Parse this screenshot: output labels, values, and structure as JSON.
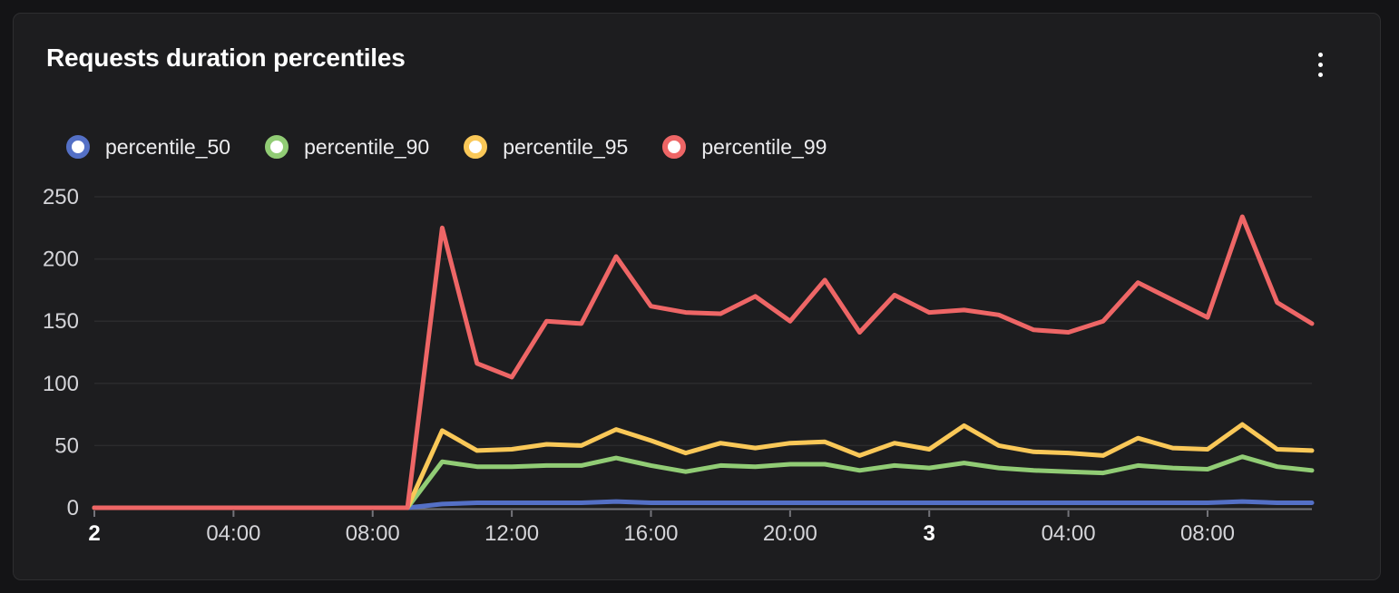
{
  "panel": {
    "title": "Requests duration percentiles",
    "background_color": "#1d1d1f",
    "page_background_color": "#141416",
    "menu_icon": "kebab-vertical-icon"
  },
  "legend": {
    "position": "top-left",
    "items": [
      {
        "label": "percentile_50",
        "color": "#5470c6"
      },
      {
        "label": "percentile_90",
        "color": "#91cc75"
      },
      {
        "label": "percentile_95",
        "color": "#fac858"
      },
      {
        "label": "percentile_99",
        "color": "#ee6666"
      }
    ]
  },
  "chart_data": {
    "type": "line",
    "title": "Requests duration percentiles",
    "xlabel": "",
    "ylabel": "",
    "x_unit": "hours, hourly samples from day 2 00:00 to day 3 11:00",
    "x_hours_range": [
      0,
      35
    ],
    "x_tick_labels": [
      {
        "hour": 0,
        "label": "2",
        "bold": true
      },
      {
        "hour": 4,
        "label": "04:00",
        "bold": false
      },
      {
        "hour": 8,
        "label": "08:00",
        "bold": false
      },
      {
        "hour": 12,
        "label": "12:00",
        "bold": false
      },
      {
        "hour": 16,
        "label": "16:00",
        "bold": false
      },
      {
        "hour": 20,
        "label": "20:00",
        "bold": false
      },
      {
        "hour": 24,
        "label": "3",
        "bold": true
      },
      {
        "hour": 28,
        "label": "04:00",
        "bold": false
      },
      {
        "hour": 32,
        "label": "08:00",
        "bold": false
      }
    ],
    "y_ticks": [
      0,
      50,
      100,
      150,
      200,
      250
    ],
    "ylim": [
      0,
      250
    ],
    "grid": {
      "horizontal": true,
      "vertical": false,
      "gridline_color": "#2b2b2d",
      "axis_color": "#74747a"
    },
    "legend_position": "top-left",
    "series": [
      {
        "name": "percentile_50",
        "color": "#5470c6",
        "values": [
          0,
          0,
          0,
          0,
          0,
          0,
          0,
          0,
          0,
          0,
          3,
          4,
          4,
          4,
          4,
          5,
          4,
          4,
          4,
          4,
          4,
          4,
          4,
          4,
          4,
          4,
          4,
          4,
          4,
          4,
          4,
          4,
          4,
          5,
          4,
          4
        ]
      },
      {
        "name": "percentile_90",
        "color": "#91cc75",
        "values": [
          0,
          0,
          0,
          0,
          0,
          0,
          0,
          0,
          0,
          0,
          37,
          33,
          33,
          34,
          34,
          40,
          34,
          29,
          34,
          33,
          35,
          35,
          30,
          34,
          32,
          36,
          32,
          30,
          29,
          28,
          34,
          32,
          31,
          41,
          33,
          30
        ]
      },
      {
        "name": "percentile_95",
        "color": "#fac858",
        "values": [
          0,
          0,
          0,
          0,
          0,
          0,
          0,
          0,
          0,
          0,
          62,
          46,
          47,
          51,
          50,
          63,
          54,
          44,
          52,
          48,
          52,
          53,
          42,
          52,
          47,
          66,
          50,
          45,
          44,
          42,
          56,
          48,
          47,
          67,
          47,
          46
        ]
      },
      {
        "name": "percentile_99",
        "color": "#ee6666",
        "values": [
          0,
          0,
          0,
          0,
          0,
          0,
          0,
          0,
          0,
          0,
          225,
          116,
          105,
          150,
          148,
          202,
          162,
          157,
          156,
          170,
          150,
          183,
          141,
          171,
          157,
          159,
          155,
          143,
          141,
          150,
          181,
          167,
          153,
          234,
          165,
          148
        ]
      }
    ]
  }
}
